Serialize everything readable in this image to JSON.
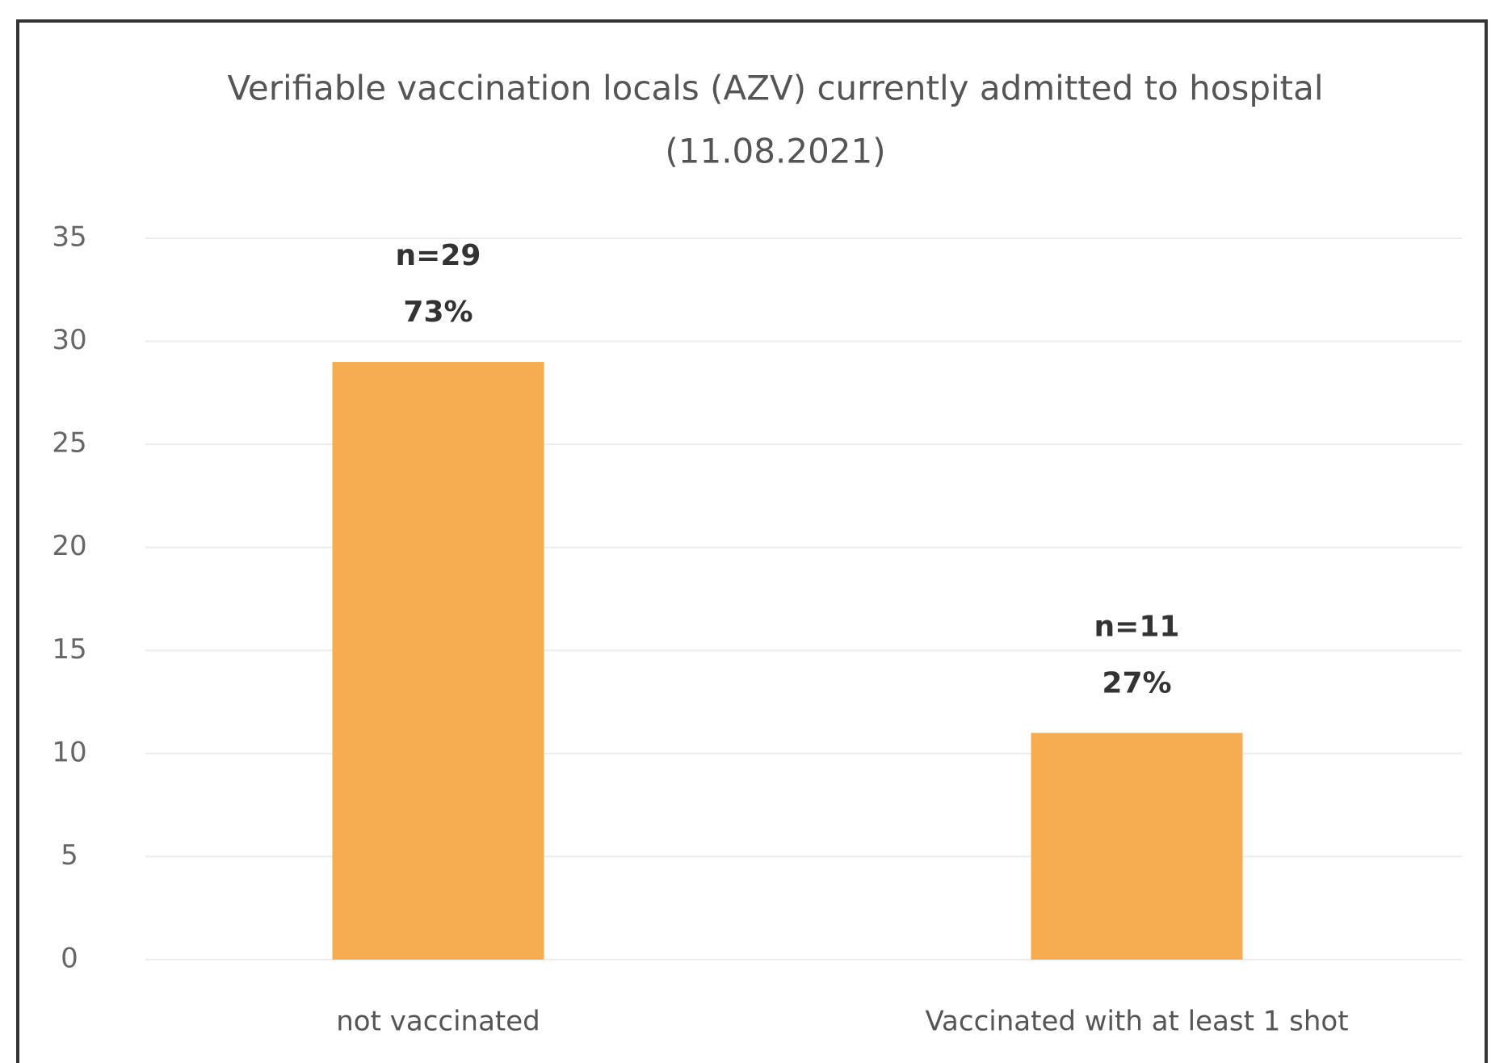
{
  "chart_data": {
    "type": "bar",
    "title": "Verifiable vaccination locals (AZV) currently admitted to hospital",
    "subtitle": "(11.08.2021)",
    "categories": [
      "not vaccinated",
      "Vaccinated with at least 1 shot"
    ],
    "values": [
      29,
      11
    ],
    "value_labels": [
      "n=29",
      "n=11"
    ],
    "percent_labels": [
      "73%",
      "27%"
    ],
    "color": "#f6ad4f",
    "ylim": [
      0,
      35
    ],
    "yticks": [
      0,
      5,
      10,
      15,
      20,
      25,
      30,
      35
    ],
    "grid": true
  }
}
